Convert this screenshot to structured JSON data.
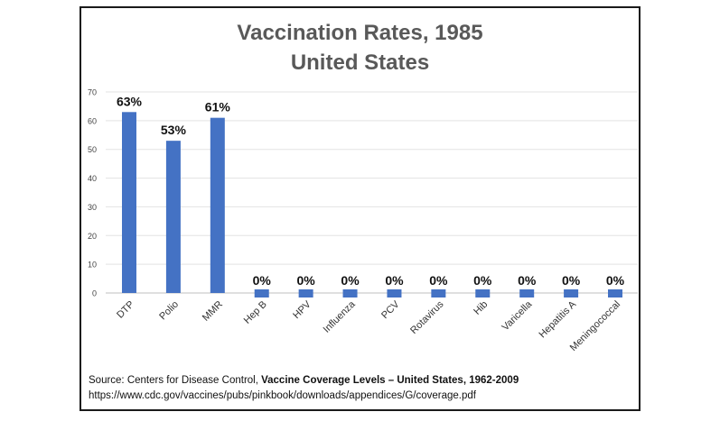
{
  "chart_data": {
    "type": "bar",
    "title_line1": "Vaccination Rates, 1985",
    "title_line2": "United States",
    "categories": [
      "DTP",
      "Polio",
      "MMR",
      "Hep B",
      "HPV",
      "Influenza",
      "PCV",
      "Rotavirus",
      "Hib",
      "Varicella",
      "Hepatitis A",
      "Meningococcal"
    ],
    "values": [
      63,
      53,
      61,
      0,
      0,
      0,
      0,
      0,
      0,
      0,
      0,
      0
    ],
    "data_labels": [
      "63%",
      "53%",
      "61%",
      "0%",
      "0%",
      "0%",
      "0%",
      "0%",
      "0%",
      "0%",
      "0%",
      "0%"
    ],
    "ylim": [
      0,
      70
    ],
    "yticks": [
      0,
      10,
      20,
      30,
      40,
      50,
      60,
      70
    ],
    "grid": true,
    "bar_color": "#4472C4"
  },
  "source": {
    "prefix": "Source: Centers for Disease Control, ",
    "bold": "Vaccine Coverage Levels – United States, 1962-2009",
    "url": "https://www.cdc.gov/vaccines/pubs/pinkbook/downloads/appendices/G/coverage.pdf"
  }
}
